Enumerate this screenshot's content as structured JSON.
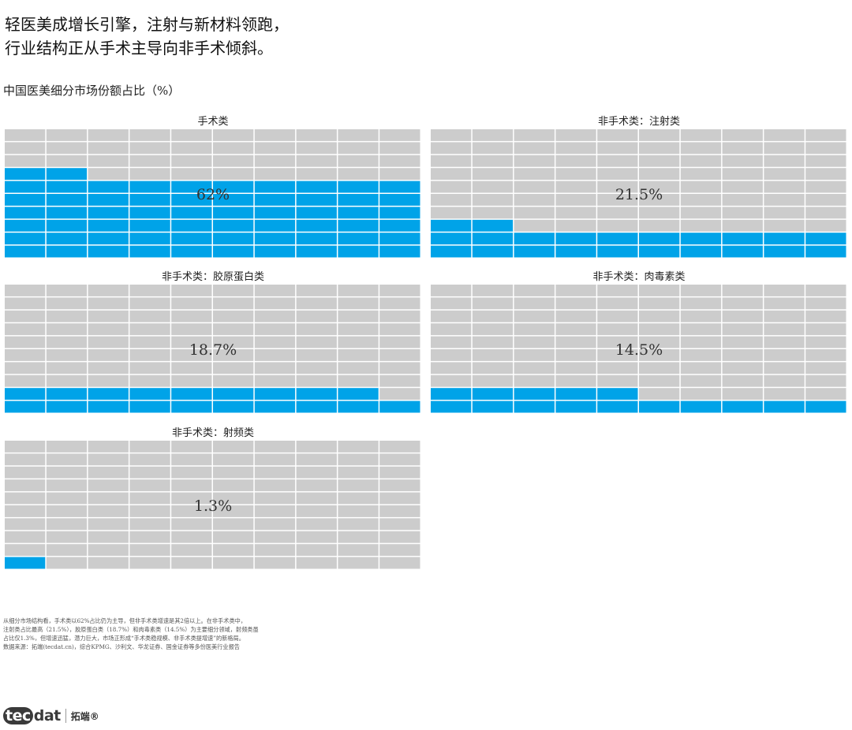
{
  "headline": {
    "line1": "轻医美成增长引擎，注射与新材料领跑，",
    "line2": "行业结构正从手术主导向非手术倾斜。"
  },
  "subtitle": "中国医美细分市场份额占比（%）",
  "chart_data": {
    "type": "waffle",
    "grid": {
      "columns": 10,
      "rows": 10,
      "unit": "1 cell = 1%"
    },
    "colors": {
      "filled": "#00A3E8",
      "empty": "#CCCCCC"
    },
    "panels": [
      {
        "title": "手术类",
        "value": 62,
        "label": "62%"
      },
      {
        "title": "非手术类：注射类",
        "value": 21.5,
        "label": "21.5%"
      },
      {
        "title": "非手术类：胶原蛋白类",
        "value": 18.7,
        "label": "18.7%"
      },
      {
        "title": "非手术类：肉毒素类",
        "value": 14.5,
        "label": "14.5%"
      },
      {
        "title": "非手术类：射频类",
        "value": 1.3,
        "label": "1.3%"
      }
    ]
  },
  "note": {
    "line1": "从细分市场结构看，手术类以62%占比仍为主导，但非手术类增速是其2倍以上。在非手术类中，",
    "line2": "注射类占比最高（21.5%），胶原蛋白类（18.7%）和肉毒素类（14.5%）为主要细分领域，射频类虽",
    "line3": "占比仅1.3%，但增速迅猛，潜力巨大，市场正形成“手术类稳规模、非手术类提增速”的新格局。",
    "line4": "数据来源：拓端(tecdat.cn)，综合KPMG、沙利文、华龙证券、国金证券等多份医美行业报告"
  },
  "logo": {
    "mark_a": "tec",
    "mark_b": "dat",
    "name": "拓端®"
  }
}
